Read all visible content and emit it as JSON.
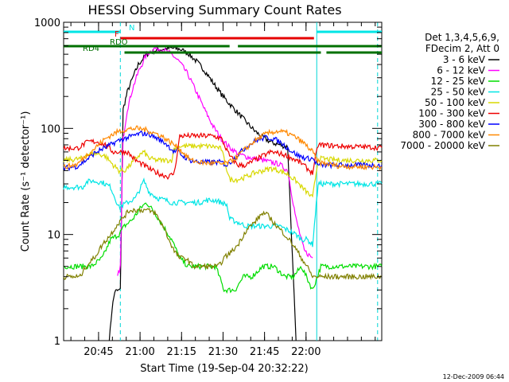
{
  "chart_data": {
    "type": "line",
    "title": "HESSI Observing Summary Count Rates",
    "xlabel": "Start Time (19-Sep-04 20:32:22)",
    "ylabel": "Count Rate (s⁻¹ detector⁻¹)",
    "y_scale": "log",
    "ylim": [
      1,
      1000
    ],
    "xlim_minutes": [
      0,
      115
    ],
    "x_tick_labels": [
      "20:45",
      "21:00",
      "21:15",
      "21:30",
      "21:45",
      "22:00"
    ],
    "x_tick_minutes": [
      12.63,
      27.63,
      42.63,
      57.63,
      72.63,
      87.63
    ],
    "y_tick_labels": [
      "1",
      "10",
      "100",
      "1000"
    ],
    "y_tick_values": [
      1,
      10,
      100,
      1000
    ],
    "legend_header": [
      "Det 1,3,4,5,6,9,",
      "FDecim 2, Att 0"
    ],
    "legend_position": "right",
    "footer_date": "12-Dec-2009 06:44",
    "flag_bars": [
      {
        "label": "N",
        "color": "#00e5e5",
        "segments": [
          [
            0,
            20.5
          ],
          [
            91.5,
            115
          ]
        ]
      },
      {
        "label": "F",
        "color": "#e60000",
        "segments": [
          [
            20.5,
            90.5
          ]
        ]
      },
      {
        "label": "RDO",
        "color": "#007000",
        "segments": [
          [
            0,
            60
          ],
          [
            63,
            115
          ]
        ]
      },
      {
        "label": "RD4",
        "color": "#007000",
        "segments": [
          [
            22,
            93
          ],
          [
            95,
            115
          ]
        ]
      }
    ],
    "night_markers": [
      {
        "minute": 20.5,
        "style": "dashed"
      },
      {
        "minute": 91.5,
        "style": "solid"
      },
      {
        "minute": 113.5,
        "style": "dashed"
      }
    ],
    "series": [
      {
        "name": "3 - 6 keV",
        "color": "#000000",
        "points": [
          [
            16.5,
            1.0
          ],
          [
            17.5,
            2.0
          ],
          [
            18.5,
            2.9
          ],
          [
            20.5,
            3.0
          ],
          [
            21.5,
            150
          ],
          [
            23,
            220
          ],
          [
            25,
            300
          ],
          [
            27,
            400
          ],
          [
            30,
            500
          ],
          [
            33,
            540
          ],
          [
            36,
            560
          ],
          [
            39,
            570
          ],
          [
            42,
            560
          ],
          [
            45,
            510
          ],
          [
            48,
            430
          ],
          [
            51,
            350
          ],
          [
            54,
            270
          ],
          [
            57,
            210
          ],
          [
            60,
            170
          ],
          [
            63,
            140
          ],
          [
            66,
            115
          ],
          [
            69,
            95
          ],
          [
            72,
            82
          ],
          [
            75,
            74
          ],
          [
            78,
            70
          ],
          [
            81,
            67
          ],
          [
            84,
            1.0
          ]
        ]
      },
      {
        "name": "6 - 12 keV",
        "color": "#ff00ff",
        "points": [
          [
            19.5,
            4.0
          ],
          [
            20.5,
            5.0
          ],
          [
            21.5,
            80
          ],
          [
            23,
            150
          ],
          [
            25,
            240
          ],
          [
            27,
            340
          ],
          [
            30,
            500
          ],
          [
            33,
            570
          ],
          [
            36,
            550
          ],
          [
            39,
            500
          ],
          [
            42,
            420
          ],
          [
            45,
            320
          ],
          [
            48,
            220
          ],
          [
            51,
            150
          ],
          [
            54,
            105
          ],
          [
            57,
            80
          ],
          [
            60,
            66
          ],
          [
            63,
            58
          ],
          [
            66,
            54
          ],
          [
            69,
            52
          ],
          [
            72,
            50
          ],
          [
            75,
            48
          ],
          [
            78,
            46
          ],
          [
            81,
            40
          ],
          [
            84,
            14
          ],
          [
            87,
            7
          ],
          [
            90,
            6
          ]
        ]
      },
      {
        "name": "12 - 25 keV",
        "color": "#00dd00",
        "points": [
          [
            0,
            5
          ],
          [
            10,
            5
          ],
          [
            14,
            6
          ],
          [
            17,
            9
          ],
          [
            20,
            10
          ],
          [
            22,
            12
          ],
          [
            25,
            14
          ],
          [
            28,
            18
          ],
          [
            30,
            20
          ],
          [
            33,
            16
          ],
          [
            36,
            12
          ],
          [
            39,
            9
          ],
          [
            42,
            6
          ],
          [
            45,
            5
          ],
          [
            48,
            5
          ],
          [
            51,
            5
          ],
          [
            55,
            5
          ],
          [
            58,
            3
          ],
          [
            62,
            3
          ],
          [
            65,
            4
          ],
          [
            68,
            4
          ],
          [
            72,
            5
          ],
          [
            76,
            5
          ],
          [
            80,
            4
          ],
          [
            83,
            4
          ],
          [
            86,
            5
          ],
          [
            90,
            3
          ],
          [
            93,
            5
          ],
          [
            100,
            5
          ],
          [
            115,
            5
          ]
        ]
      },
      {
        "name": "25 - 50 keV",
        "color": "#00e5e5",
        "points": [
          [
            0,
            28
          ],
          [
            7,
            28
          ],
          [
            8,
            31
          ],
          [
            10,
            32
          ],
          [
            14,
            31
          ],
          [
            17,
            28
          ],
          [
            20,
            18
          ],
          [
            23,
            20
          ],
          [
            26,
            22
          ],
          [
            29,
            32
          ],
          [
            31,
            25
          ],
          [
            34,
            22
          ],
          [
            37,
            21
          ],
          [
            39,
            20
          ],
          [
            41,
            20
          ],
          [
            43,
            20
          ],
          [
            44,
            20
          ],
          [
            46,
            20
          ],
          [
            49,
            20
          ],
          [
            52,
            21
          ],
          [
            55,
            21
          ],
          [
            57,
            20
          ],
          [
            59,
            19
          ],
          [
            60,
            14
          ],
          [
            63,
            13
          ],
          [
            66,
            12
          ],
          [
            69,
            12
          ],
          [
            72,
            12
          ],
          [
            75,
            12
          ],
          [
            78,
            12
          ],
          [
            81,
            11
          ],
          [
            84,
            10
          ],
          [
            86,
            9
          ],
          [
            88,
            9
          ],
          [
            90,
            8
          ],
          [
            92,
            30
          ],
          [
            100,
            30
          ],
          [
            115,
            30
          ]
        ]
      },
      {
        "name": "50 - 100 keV",
        "color": "#d8d800",
        "points": [
          [
            0,
            50
          ],
          [
            7,
            52
          ],
          [
            8,
            57
          ],
          [
            12,
            58
          ],
          [
            15,
            55
          ],
          [
            18,
            45
          ],
          [
            20,
            40
          ],
          [
            22,
            40
          ],
          [
            24,
            45
          ],
          [
            27,
            55
          ],
          [
            29,
            60
          ],
          [
            31,
            52
          ],
          [
            34,
            50
          ],
          [
            37,
            50
          ],
          [
            39,
            50
          ],
          [
            40,
            65
          ],
          [
            42,
            68
          ],
          [
            45,
            68
          ],
          [
            48,
            68
          ],
          [
            50,
            68
          ],
          [
            52,
            68
          ],
          [
            55,
            67
          ],
          [
            57,
            64
          ],
          [
            60,
            33
          ],
          [
            63,
            33
          ],
          [
            66,
            35
          ],
          [
            69,
            38
          ],
          [
            72,
            40
          ],
          [
            75,
            42
          ],
          [
            78,
            40
          ],
          [
            81,
            37
          ],
          [
            84,
            32
          ],
          [
            86,
            28
          ],
          [
            88,
            25
          ],
          [
            90,
            22
          ],
          [
            92,
            52
          ],
          [
            100,
            50
          ],
          [
            115,
            50
          ]
        ]
      },
      {
        "name": "100 - 300 keV",
        "color": "#ee0000",
        "points": [
          [
            0,
            65
          ],
          [
            5,
            65
          ],
          [
            7,
            70
          ],
          [
            9,
            75
          ],
          [
            12,
            75
          ],
          [
            15,
            70
          ],
          [
            18,
            60
          ],
          [
            20,
            60
          ],
          [
            23,
            60
          ],
          [
            26,
            50
          ],
          [
            29,
            45
          ],
          [
            32,
            40
          ],
          [
            35,
            37
          ],
          [
            38,
            35
          ],
          [
            40,
            38
          ],
          [
            42,
            85
          ],
          [
            45,
            85
          ],
          [
            48,
            85
          ],
          [
            51,
            85
          ],
          [
            54,
            85
          ],
          [
            57,
            80
          ],
          [
            60,
            55
          ],
          [
            63,
            45
          ],
          [
            66,
            45
          ],
          [
            69,
            50
          ],
          [
            72,
            55
          ],
          [
            75,
            60
          ],
          [
            78,
            58
          ],
          [
            81,
            55
          ],
          [
            84,
            50
          ],
          [
            86,
            47
          ],
          [
            88,
            42
          ],
          [
            90,
            38
          ],
          [
            92,
            70
          ],
          [
            100,
            68
          ],
          [
            115,
            66
          ]
        ]
      },
      {
        "name": "300 - 800 keV",
        "color": "#0000ff",
        "points": [
          [
            0,
            42
          ],
          [
            5,
            44
          ],
          [
            8,
            50
          ],
          [
            11,
            58
          ],
          [
            14,
            64
          ],
          [
            17,
            70
          ],
          [
            19,
            75
          ],
          [
            22,
            80
          ],
          [
            25,
            85
          ],
          [
            28,
            90
          ],
          [
            31,
            88
          ],
          [
            34,
            80
          ],
          [
            37,
            72
          ],
          [
            40,
            60
          ],
          [
            41,
            62
          ],
          [
            43,
            55
          ],
          [
            46,
            50
          ],
          [
            49,
            48
          ],
          [
            52,
            48
          ],
          [
            55,
            48
          ],
          [
            57,
            48
          ],
          [
            59,
            45
          ],
          [
            61,
            50
          ],
          [
            64,
            60
          ],
          [
            67,
            70
          ],
          [
            70,
            78
          ],
          [
            73,
            82
          ],
          [
            76,
            80
          ],
          [
            79,
            72
          ],
          [
            82,
            62
          ],
          [
            85,
            55
          ],
          [
            88,
            52
          ],
          [
            90,
            52
          ],
          [
            92,
            45
          ],
          [
            100,
            45
          ],
          [
            115,
            45
          ]
        ]
      },
      {
        "name": "800 - 7000 keV",
        "color": "#ff8800",
        "points": [
          [
            0,
            43
          ],
          [
            5,
            46
          ],
          [
            8,
            55
          ],
          [
            11,
            64
          ],
          [
            14,
            76
          ],
          [
            17,
            86
          ],
          [
            20,
            94
          ],
          [
            23,
            98
          ],
          [
            26,
            100
          ],
          [
            29,
            98
          ],
          [
            32,
            92
          ],
          [
            35,
            86
          ],
          [
            38,
            76
          ],
          [
            40,
            70
          ],
          [
            43,
            60
          ],
          [
            46,
            50
          ],
          [
            49,
            48
          ],
          [
            52,
            47
          ],
          [
            55,
            47
          ],
          [
            57,
            46
          ],
          [
            60,
            48
          ],
          [
            63,
            55
          ],
          [
            66,
            65
          ],
          [
            69,
            76
          ],
          [
            72,
            86
          ],
          [
            75,
            92
          ],
          [
            78,
            94
          ],
          [
            81,
            90
          ],
          [
            84,
            82
          ],
          [
            87,
            72
          ],
          [
            90,
            60
          ],
          [
            92,
            48
          ],
          [
            100,
            44
          ],
          [
            115,
            43
          ]
        ]
      },
      {
        "name": "7000 - 20000 keV",
        "color": "#808000",
        "points": [
          [
            0,
            4
          ],
          [
            6,
            4
          ],
          [
            8,
            5
          ],
          [
            11,
            6
          ],
          [
            14,
            8
          ],
          [
            17,
            10
          ],
          [
            19,
            12
          ],
          [
            22,
            15
          ],
          [
            24,
            17
          ],
          [
            27,
            17
          ],
          [
            30,
            17
          ],
          [
            33,
            16
          ],
          [
            36,
            12
          ],
          [
            38,
            9
          ],
          [
            40,
            7
          ],
          [
            42,
            6
          ],
          [
            44,
            6
          ],
          [
            47,
            5
          ],
          [
            50,
            5
          ],
          [
            53,
            5
          ],
          [
            56,
            5
          ],
          [
            58,
            6
          ],
          [
            61,
            7
          ],
          [
            63,
            8
          ],
          [
            66,
            11
          ],
          [
            69,
            13
          ],
          [
            72,
            16
          ],
          [
            74,
            15
          ],
          [
            77,
            12
          ],
          [
            80,
            10
          ],
          [
            83,
            8
          ],
          [
            86,
            6
          ],
          [
            88,
            5
          ],
          [
            90,
            4
          ],
          [
            92,
            4
          ],
          [
            100,
            4
          ],
          [
            115,
            4
          ]
        ]
      }
    ]
  }
}
